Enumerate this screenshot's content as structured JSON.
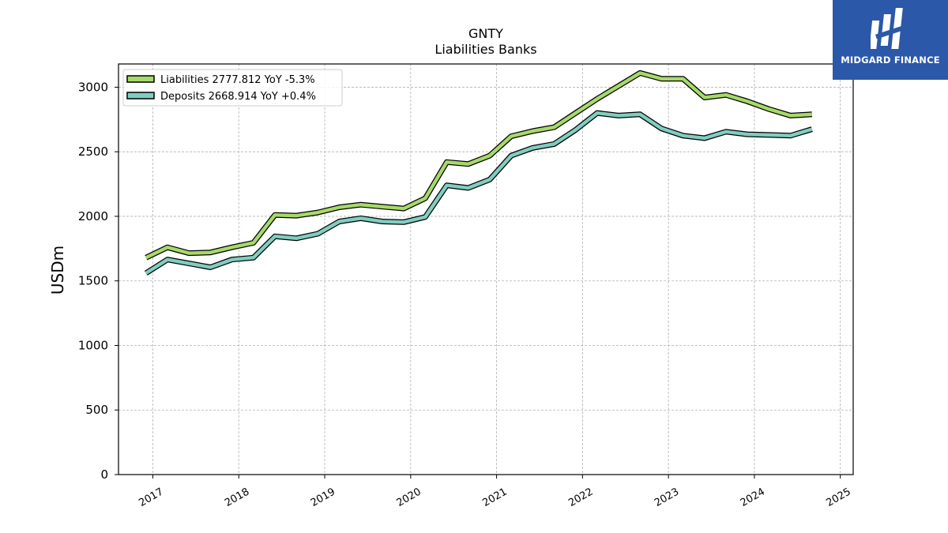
{
  "chart_data": {
    "type": "line",
    "title": "GNTY",
    "subtitle": "Liabilities Banks",
    "xlabel": "",
    "ylabel": "USDm",
    "xlim": [
      2016.6,
      2025.15
    ],
    "ylim": [
      0,
      3180
    ],
    "x_ticks": [
      "2017",
      "2018",
      "2019",
      "2020",
      "2021",
      "2022",
      "2023",
      "2024",
      "2025"
    ],
    "y_ticks": [
      "0",
      "500",
      "1000",
      "1500",
      "2000",
      "2500",
      "3000"
    ],
    "grid": true,
    "legend_position": "top-left",
    "x": [
      2016.92,
      2017.17,
      2017.42,
      2017.67,
      2017.92,
      2018.17,
      2018.42,
      2018.67,
      2018.92,
      2019.17,
      2019.42,
      2019.67,
      2019.92,
      2020.17,
      2020.42,
      2020.67,
      2020.92,
      2021.17,
      2021.42,
      2021.67,
      2021.92,
      2022.17,
      2022.42,
      2022.67,
      2022.92,
      2023.17,
      2023.42,
      2023.67,
      2023.92,
      2024.17,
      2024.42,
      2024.67
    ],
    "series": [
      {
        "name": "Liabilities",
        "legend_label": "Liabilities  2777.812 YoY -5.3%",
        "color": "#a6d96a",
        "values": [
          1680,
          1760,
          1715,
          1720,
          1760,
          1795,
          2010,
          2005,
          2030,
          2070,
          2090,
          2075,
          2060,
          2140,
          2420,
          2405,
          2470,
          2620,
          2660,
          2690,
          2800,
          2910,
          3010,
          3110,
          3065,
          3065,
          2920,
          2940,
          2890,
          2830,
          2780,
          2790
        ]
      },
      {
        "name": "Deposits",
        "legend_label": "Deposits  2668.914 YoY +0.4%",
        "color": "#80cdc1",
        "values": [
          1560,
          1665,
          1635,
          1605,
          1665,
          1680,
          1845,
          1830,
          1865,
          1960,
          1985,
          1960,
          1955,
          1995,
          2240,
          2220,
          2285,
          2470,
          2530,
          2560,
          2670,
          2800,
          2780,
          2790,
          2680,
          2625,
          2605,
          2655,
          2635,
          2630,
          2625,
          2675
        ]
      }
    ]
  },
  "logo": {
    "brand": "MIDGARD FINANCE",
    "bg_color": "#2b58a8"
  }
}
